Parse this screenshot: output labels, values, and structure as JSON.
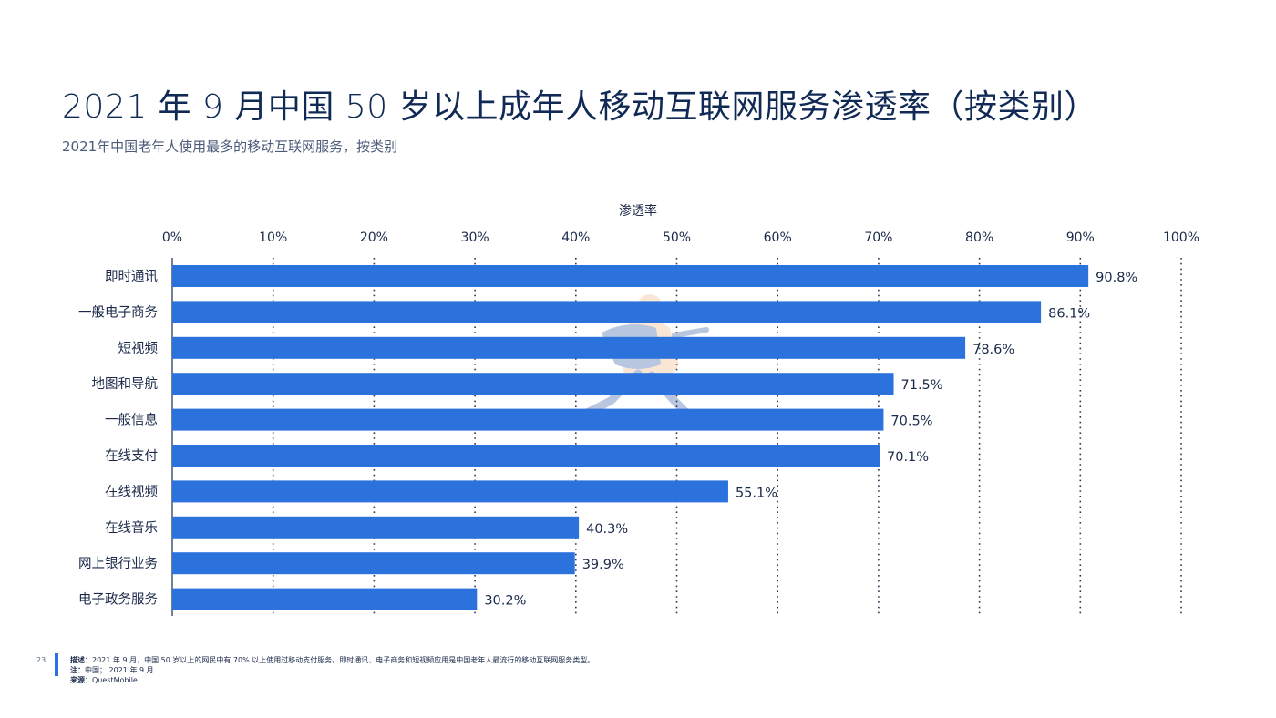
{
  "page": {
    "title": "2021 年 9 月中国 50 岁以上成年人移动互联网服务渗透率（按类别）",
    "subtitle": "2021年中国老年人使用最多的移动互联网服务，按类别",
    "page_number": "23"
  },
  "footer": {
    "description_label": "描述：",
    "description_text": "2021 年 9 月，中国 50 岁以上的网民中有 70% 以上使用过移动支付服务。即时通讯、电子商务和短视频应用是中国老年人最流行的移动互联网服务类型。",
    "note_label": "注：",
    "note_text": "中国；  2021 年 9 月",
    "source_label": "来源：",
    "source_text": "QuestMobile"
  },
  "colors": {
    "bar": "#2b72dd",
    "axis": "#1b2a4a",
    "grid": "#2a3550",
    "accent": "#2b6fe0"
  },
  "chart_data": {
    "type": "bar",
    "orientation": "horizontal",
    "xlabel": "渗透率",
    "xlim": [
      0,
      100
    ],
    "ticks": [
      "0%",
      "10%",
      "20%",
      "30%",
      "40%",
      "50%",
      "60%",
      "70%",
      "80%",
      "90%",
      "100%"
    ],
    "grid": "vertical dotted",
    "categories": [
      "即时通讯",
      "一般电子商务",
      "短视频",
      "地图和导航",
      "一般信息",
      "在线支付",
      "在线视频",
      "在线音乐",
      "网上银行业务",
      "电子政务服务"
    ],
    "values": [
      90.8,
      86.1,
      78.6,
      71.5,
      70.5,
      70.1,
      55.1,
      40.3,
      39.9,
      30.2
    ],
    "value_labels": [
      "90.8%",
      "86.1%",
      "78.6%",
      "71.5%",
      "70.5%",
      "70.1%",
      "55.1%",
      "40.3%",
      "39.9%",
      "30.2%"
    ]
  }
}
